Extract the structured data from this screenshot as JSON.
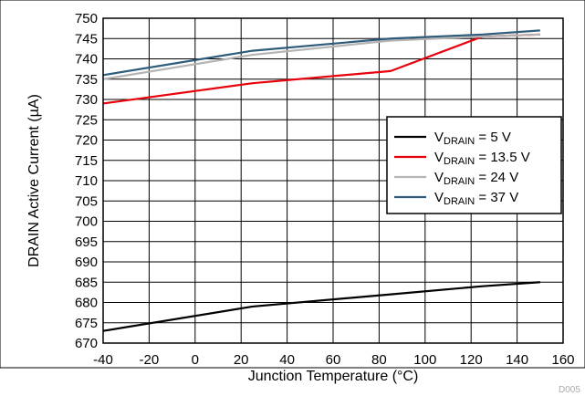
{
  "chart_data": {
    "type": "line",
    "xlabel": "Junction Temperature (°C)",
    "ylabel": "DRAIN Active Current (µA)",
    "xlim": [
      -40,
      160
    ],
    "ylim": [
      670,
      750
    ],
    "x_ticks": [
      -40,
      -20,
      0,
      20,
      40,
      60,
      80,
      100,
      120,
      140,
      160
    ],
    "y_ticks": [
      670,
      675,
      680,
      685,
      690,
      695,
      700,
      705,
      710,
      715,
      720,
      725,
      730,
      735,
      740,
      745,
      750
    ],
    "grid": true,
    "legend_position": "middle-right",
    "series": [
      {
        "label_main": "V",
        "label_sub": "DRAIN",
        "label_rest": " = 5 V",
        "color": "#000000",
        "x": [
          -40,
          25,
          85,
          125,
          150
        ],
        "y": [
          673,
          679,
          682,
          684,
          685
        ]
      },
      {
        "label_main": "V",
        "label_sub": "DRAIN",
        "label_rest": " = 13.5 V",
        "color": "#e8000b",
        "x": [
          -40,
          25,
          85,
          125,
          150
        ],
        "y": [
          729,
          734,
          737,
          745.5,
          746
        ]
      },
      {
        "label_main": "V",
        "label_sub": "DRAIN",
        "label_rest": " = 24 V",
        "color": "#b4b4b4",
        "x": [
          -40,
          25,
          85,
          125,
          150
        ],
        "y": [
          735,
          741,
          744.5,
          745.5,
          746
        ]
      },
      {
        "label_main": "V",
        "label_sub": "DRAIN",
        "label_rest": " = 37 V",
        "color": "#2e5c7a",
        "x": [
          -40,
          25,
          85,
          125,
          150
        ],
        "y": [
          736,
          742,
          745,
          746,
          747
        ]
      }
    ]
  },
  "footer_code": "D005"
}
